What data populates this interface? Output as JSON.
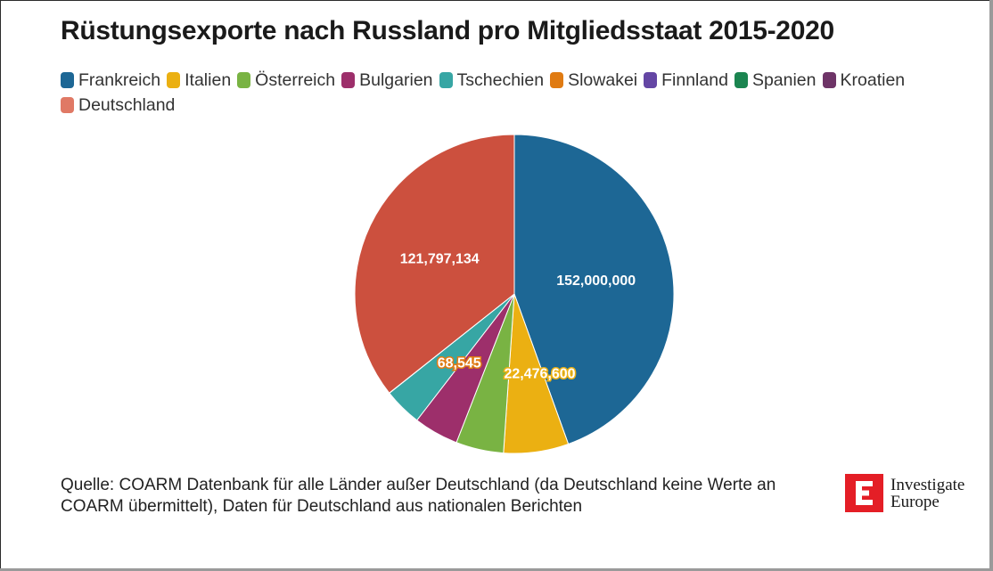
{
  "title": "Rüstungsexporte nach Russland pro Mitgliedsstaat 2015-2020",
  "legend": [
    {
      "label": "Frankreich",
      "color": "#1d6795"
    },
    {
      "label": "Italien",
      "color": "#ebb012"
    },
    {
      "label": "Österreich",
      "color": "#79b343"
    },
    {
      "label": "Bulgarien",
      "color": "#9d2f6b"
    },
    {
      "label": "Tschechien",
      "color": "#37a6a4"
    },
    {
      "label": "Slowakei",
      "color": "#e07b12"
    },
    {
      "label": "Finnland",
      "color": "#6446a4"
    },
    {
      "label": "Spanien",
      "color": "#1b8550"
    },
    {
      "label": "Kroatien",
      "color": "#6e3467"
    },
    {
      "label": "Deutschland",
      "color": "#e07965"
    }
  ],
  "chart_data": {
    "type": "pie",
    "title": "Rüstungsexporte nach Russland pro Mitgliedsstaat 2015-2020",
    "slices": [
      {
        "name": "Frankreich",
        "value": 152000000,
        "label": "152,000,000",
        "color": "#1d6795",
        "label_color": "#ffffff"
      },
      {
        "name": "Italien",
        "value": 22476600,
        "label": "22,476,600",
        "color": "#ebb012",
        "label_color": "#ffffff"
      },
      {
        "name": "Österreich",
        "value": 16500000,
        "label": "",
        "color": "#79b343"
      },
      {
        "name": "Bulgarien",
        "value": 15500000,
        "label": "",
        "color": "#9d2f6b"
      },
      {
        "name": "Tschechien",
        "value": 13200000,
        "label": "",
        "color": "#37a6a4"
      },
      {
        "name": "Slowakei",
        "value": 68545,
        "label": "68,545",
        "color": "#e07b12",
        "label_color": "#ffffff"
      },
      {
        "name": "Finnland",
        "value": 0,
        "label": "",
        "color": "#6446a4"
      },
      {
        "name": "Spanien",
        "value": 0,
        "label": "",
        "color": "#1b8550"
      },
      {
        "name": "Kroatien",
        "value": 0,
        "label": "",
        "color": "#6e3467"
      },
      {
        "name": "Deutschland",
        "value": 121797134,
        "label": "121,797,134",
        "color": "#cc503e",
        "label_color": "#ffffff"
      }
    ]
  },
  "source": "Quelle: COARM Datenbank für alle Länder außer Deutschland (da Deutschland keine Werte an COARM übermittelt), Daten für Deutschland aus nationalen Berichten",
  "logo": {
    "letter": "E",
    "line1": "Investigate",
    "line2": "Europe",
    "color": "#e41e26"
  }
}
